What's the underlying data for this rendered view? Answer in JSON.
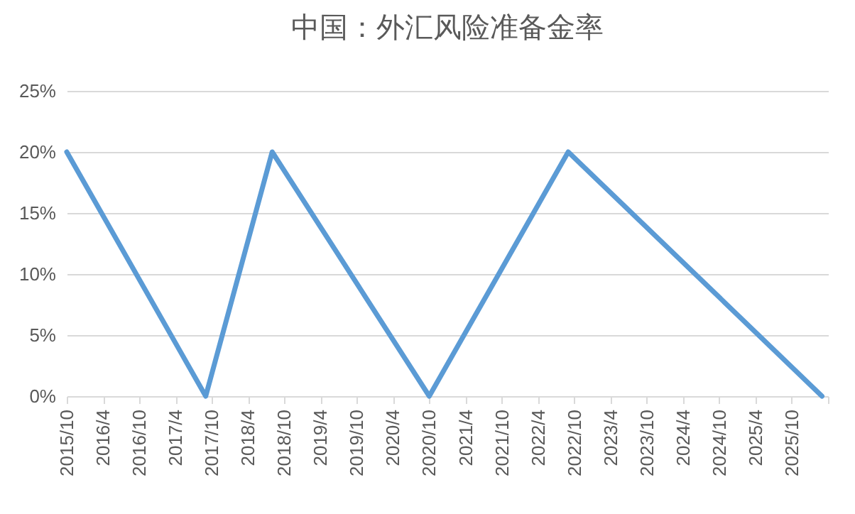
{
  "chart_data": {
    "type": "line",
    "title": "中国：外汇风险准备金率",
    "x": [
      "2015-10",
      "2017-09",
      "2018-08",
      "2020-10",
      "2022-09",
      "2026-03"
    ],
    "series": [
      {
        "color": "#5b9bd5",
        "values": [
          20,
          0,
          20,
          0,
          20,
          0
        ]
      }
    ],
    "xlim": [
      "2015-10",
      "2026-04"
    ],
    "xticks": [
      {
        "value": "2015-10",
        "label": "2015/10"
      },
      {
        "value": "2016-04",
        "label": "2016/4"
      },
      {
        "value": "2016-10",
        "label": "2016/10"
      },
      {
        "value": "2017-04",
        "label": "2017/4"
      },
      {
        "value": "2017-10",
        "label": "2017/10"
      },
      {
        "value": "2018-04",
        "label": "2018/4"
      },
      {
        "value": "2018-10",
        "label": "2018/10"
      },
      {
        "value": "2019-04",
        "label": "2019/4"
      },
      {
        "value": "2019-10",
        "label": "2019/10"
      },
      {
        "value": "2020-04",
        "label": "2020/4"
      },
      {
        "value": "2020-10",
        "label": "2020/10"
      },
      {
        "value": "2021-04",
        "label": "2021/4"
      },
      {
        "value": "2021-10",
        "label": "2021/10"
      },
      {
        "value": "2022-04",
        "label": "2022/4"
      },
      {
        "value": "2022-10",
        "label": "2022/10"
      },
      {
        "value": "2023-04",
        "label": "2023/4"
      },
      {
        "value": "2023-10",
        "label": "2023/10"
      },
      {
        "value": "2024-04",
        "label": "2024/4"
      },
      {
        "value": "2024-10",
        "label": "2024/10"
      },
      {
        "value": "2025-04",
        "label": "2025/4"
      },
      {
        "value": "2025-10",
        "label": "2025/10"
      },
      {
        "value": "2026-04",
        "label": null
      }
    ],
    "ylim": [
      0,
      25
    ],
    "yticks": [
      {
        "value": 0,
        "label": "0%"
      },
      {
        "value": 5,
        "label": "5%"
      },
      {
        "value": 10,
        "label": "10%"
      },
      {
        "value": 15,
        "label": "15%"
      },
      {
        "value": 20,
        "label": "20%"
      },
      {
        "value": 25,
        "label": "25%"
      }
    ],
    "grid": "y",
    "marker": "none",
    "line_style": "solid"
  }
}
